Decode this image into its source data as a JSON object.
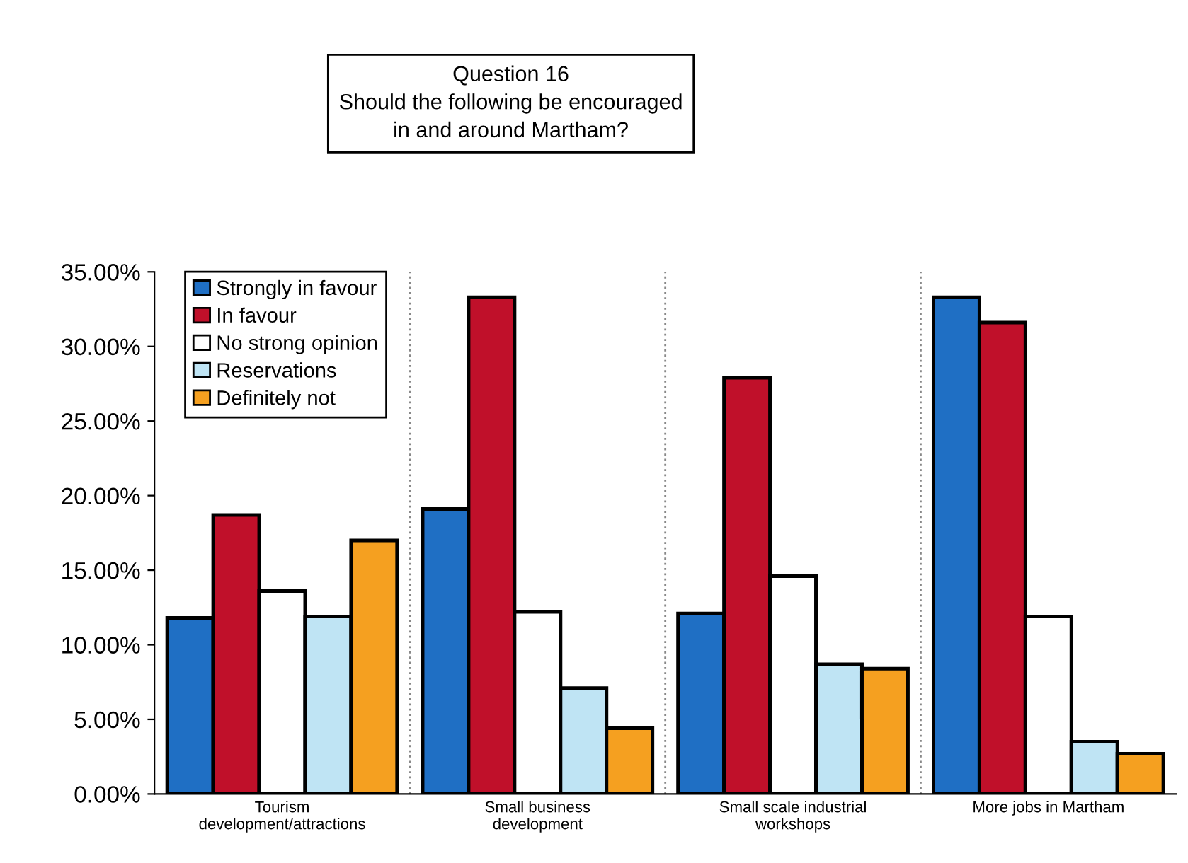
{
  "chart_data": {
    "type": "bar",
    "title": "Question 16\nShould the following be encouraged\nin and around Martham?",
    "categories": [
      "Tourism\ndevelopment/attractions",
      "Small business\ndevelopment",
      "Small scale industrial\nworkshops",
      "More jobs in Martham"
    ],
    "series": [
      {
        "name": "Strongly in favour",
        "color": "#1f6fc4",
        "values": [
          11.8,
          19.1,
          12.1,
          33.3
        ]
      },
      {
        "name": "In favour",
        "color": "#c0102a",
        "values": [
          18.7,
          33.3,
          27.9,
          31.6
        ]
      },
      {
        "name": "No strong opinion",
        "color": "#ffffff",
        "values": [
          13.6,
          12.2,
          14.6,
          11.9
        ]
      },
      {
        "name": "Reservations",
        "color": "#bfe4f4",
        "values": [
          11.9,
          7.1,
          8.7,
          3.5
        ]
      },
      {
        "name": "Definitely not",
        "color": "#f5a020",
        "values": [
          17.0,
          4.4,
          8.4,
          2.7
        ]
      }
    ],
    "ylim": [
      0,
      35
    ],
    "yticks": [
      {
        "value": 0,
        "label": "0.00%"
      },
      {
        "value": 5,
        "label": "5.00%"
      },
      {
        "value": 10,
        "label": "10.00%"
      },
      {
        "value": 15,
        "label": "15.00%"
      },
      {
        "value": 20,
        "label": "20.00%"
      },
      {
        "value": 25,
        "label": "25.00%"
      },
      {
        "value": 30,
        "label": "30.00%"
      },
      {
        "value": 35,
        "label": "35.00%"
      }
    ],
    "grid": false,
    "legend": "top left"
  }
}
